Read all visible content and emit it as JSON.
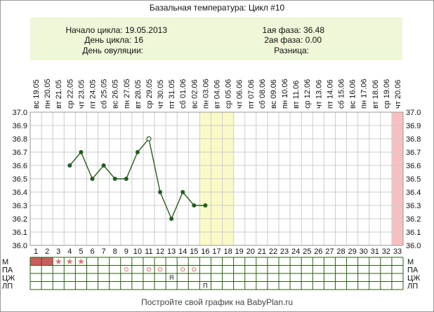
{
  "title": "Базальная температура: Цикл #10",
  "info": {
    "cycle_start_label": "Начало цикла:",
    "cycle_start_value": "19.05.2013",
    "cycle_day_label": "День цикла:",
    "cycle_day_value": "16",
    "ovulation_day_label": "День овуляции:",
    "ovulation_day_value": "",
    "phase1_label": "1ая фаза:",
    "phase1_value": "36.48",
    "phase2_label": "2ая фаза:",
    "phase2_value": "0.00",
    "difference_label": "Разница:",
    "difference_value": ""
  },
  "footer": "Постройте свой график на BabyPlan.ru",
  "colors": {
    "line": "#2d5a1b",
    "marker": "#1f5e1f",
    "grid": "#cccccc",
    "highlight_fertile": "#fafac8",
    "highlight_today": "#f7c0c0",
    "mens_fill": "#cd5c5c",
    "mens_star": "#e07070",
    "circle_mark": "#e07070",
    "info_bg": "#eef7d8"
  },
  "chart_data": {
    "type": "line",
    "title": "Базальная температура: Цикл #10",
    "xlabel": "",
    "ylabel": "",
    "ylim": [
      36.0,
      37.0
    ],
    "y_ticks": [
      "37.0",
      "36.9",
      "36.8",
      "36.7",
      "36.6",
      "36.5",
      "36.4",
      "36.3",
      "36.2",
      "36.1",
      "36.0"
    ],
    "days": [
      1,
      2,
      3,
      4,
      5,
      6,
      7,
      8,
      9,
      10,
      11,
      12,
      13,
      14,
      15,
      16,
      17,
      18,
      19,
      20,
      21,
      22,
      23,
      24,
      25,
      26,
      27,
      28,
      29,
      30,
      31,
      32,
      33
    ],
    "weekdays": [
      "вс",
      "пн",
      "вт",
      "ср",
      "чт",
      "пт",
      "сб",
      "вс",
      "пн",
      "вт",
      "ср",
      "чт",
      "пт",
      "сб",
      "вс",
      "пн",
      "вт",
      "ср",
      "чт",
      "пт",
      "сб",
      "вс",
      "пн",
      "вт",
      "ср",
      "чт",
      "пт",
      "сб",
      "вс",
      "пн",
      "вт",
      "ср",
      "чт"
    ],
    "dates": [
      "19.05",
      "20.05",
      "21.05",
      "22.05",
      "23.05",
      "24.05",
      "25.05",
      "26.05",
      "27.05",
      "28.05",
      "29.05",
      "30.05",
      "31.05",
      "01.06",
      "02.06",
      "03.06",
      "04.06",
      "05.06",
      "06.06",
      "07.06",
      "08.06",
      "09.06",
      "10.06",
      "11.06",
      "12.06",
      "13.06",
      "14.06",
      "15.06",
      "16.06",
      "17.06",
      "18.06",
      "19.06",
      "20.06"
    ],
    "series": [
      {
        "points": [
          {
            "day": 4,
            "value": 36.6
          },
          {
            "day": 5,
            "value": 36.7
          },
          {
            "day": 6,
            "value": 36.5
          },
          {
            "day": 7,
            "value": 36.6
          },
          {
            "day": 8,
            "value": 36.5
          },
          {
            "day": 9,
            "value": 36.5
          },
          {
            "day": 10,
            "value": 36.7
          },
          {
            "day": 11,
            "value": 36.8,
            "hollow": true
          },
          {
            "day": 12,
            "value": 36.4
          },
          {
            "day": 13,
            "value": 36.2
          },
          {
            "day": 14,
            "value": 36.4
          },
          {
            "day": 15,
            "value": 36.3
          },
          {
            "day": 16,
            "value": 36.3
          }
        ]
      }
    ],
    "highlight_fertile_days": [
      16,
      17,
      18
    ],
    "highlight_today_day": 33,
    "grid": true,
    "legend": "none",
    "bottom_rows": {
      "labels": [
        "М",
        "ПА",
        "ЦЖ",
        "ЛП"
      ],
      "menstruation_days": [
        1,
        2
      ],
      "spotting_star_days": [
        3,
        4,
        5
      ],
      "pa_circle_days": [
        9,
        11,
        12,
        14,
        15
      ],
      "czh_marks": [
        {
          "day": 13,
          "text": "Я"
        }
      ],
      "lp_marks": [
        {
          "day": 16,
          "text": "П"
        }
      ]
    }
  }
}
